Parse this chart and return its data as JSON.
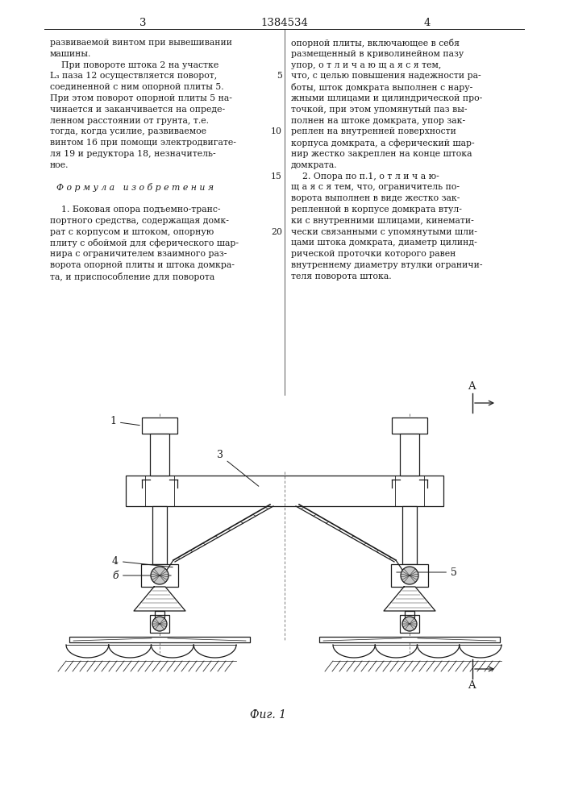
{
  "bg_color": "#ffffff",
  "text_color": "#1a1a1a",
  "line_color": "#1a1a1a",
  "page_num_left": "3",
  "patent_number": "1384534",
  "page_num_right": "4",
  "left_col_lines": [
    "развиваемой винтом при вывешивании",
    "машины.",
    "    При повороте штока 2 на участке",
    "L₃ паза 12 осуществляется поворот,",
    "соединенной с ним опорной плиты 5.",
    "При этом поворот опорной плиты 5 на-",
    "чинается и заканчивается на опреде-",
    "ленном расстоянии от грунта, т.е.",
    "тогда, когда усилие, развиваемое",
    "винтом 16 при помощи электродвигате-",
    "ля 19 и редуктора 18, незначитель-",
    "ное.",
    "",
    "Ф о р м у л а   и з о б р е т е н и я",
    "",
    "    1. Боковая опора подъемно-транс-",
    "портного средства, содержащая домк-",
    "рат с корпусом и штоком, опорную",
    "плиту с обоймой для сферического шар-",
    "нира с ограничителем взаимного раз-",
    "ворота опорной плиты и штока домкра-",
    "та, и приспособление для поворота"
  ],
  "right_col_lines": [
    "опорной плиты, включающее в себя",
    "размещенный в криволинейном пазу",
    "упор, о т л и ч а ю щ а я с я тем,",
    "что, с целью повышения надежности ра-",
    "боты, шток домкрата выполнен с нару-",
    "жными шлицами и цилиндрической про-",
    "точкой, при этом упомянутый паз вы-",
    "полнен на штоке домкрата, упор зак-",
    "реплен на внутренней поверхности",
    "корпуса домкрата, а сферический шар-",
    "нир жестко закреплен на конце штока",
    "домкрата.",
    "    2. Опора по п.1, о т л и ч а ю-",
    "щ а я с я тем, что, ограничитель по-",
    "ворота выполнен в виде жестко зак-",
    "репленной в корпусе домкрата втул-",
    "ки с внутренними шлицами, кинемати-",
    "чески связанными с упомянутыми шли-",
    "цами штока домкрата, диаметр цилинд-",
    "рической проточки которого равен",
    "внутреннему диаметру втулки ограничи-",
    "теля поворота штока."
  ],
  "fig_caption": "Фиг. 1"
}
